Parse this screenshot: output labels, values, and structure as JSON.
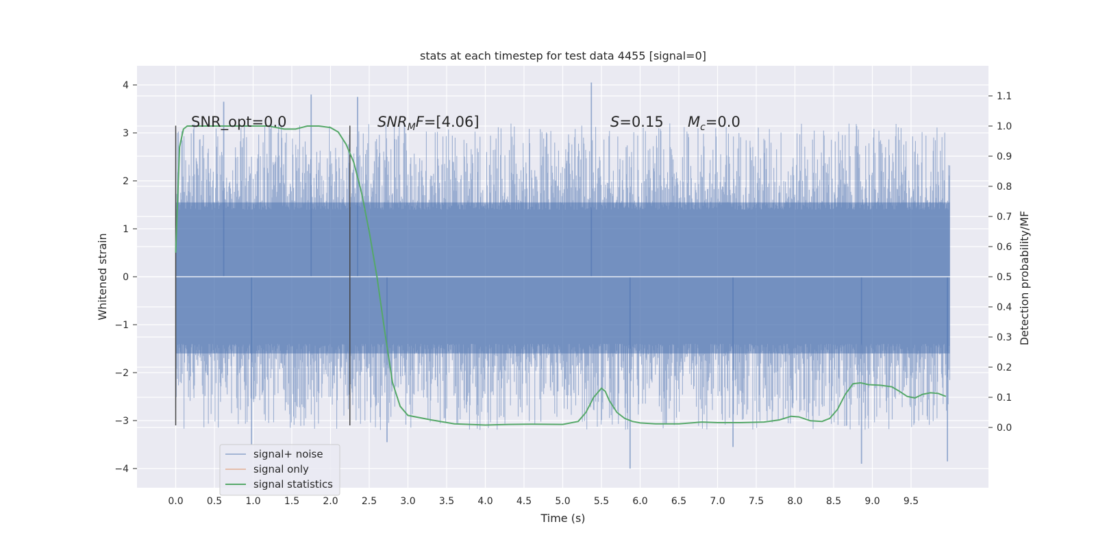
{
  "chart_data": {
    "type": "line",
    "title": "stats at each timestep for test data 4455 [signal=0]",
    "xlabel": "Time (s)",
    "ylabel": "Whitened strain",
    "ylabel_right": "Detection probability/MF",
    "xlim": [
      -0.5,
      10.5
    ],
    "ylim": [
      -4.4,
      4.4
    ],
    "ylim_right": [
      -0.2,
      1.2
    ],
    "x_ticks": [
      0.0,
      0.5,
      1.0,
      1.5,
      2.0,
      2.5,
      3.0,
      3.5,
      4.0,
      4.5,
      5.0,
      5.5,
      6.0,
      6.5,
      7.0,
      7.5,
      8.0,
      8.5,
      9.0,
      9.5
    ],
    "x_tick_labels": [
      "0.0",
      "0.5",
      "1.0",
      "1.5",
      "2.0",
      "2.5",
      "3.0",
      "3.5",
      "4.0",
      "4.5",
      "5.0",
      "5.5",
      "6.0",
      "6.5",
      "7.0",
      "7.5",
      "8.0",
      "8.5",
      "9.0",
      "9.5"
    ],
    "y_ticks": [
      4,
      3,
      2,
      1,
      0,
      -1,
      -2,
      -3,
      -4
    ],
    "y_tick_labels": [
      "4",
      "3",
      "2",
      "1",
      "0",
      "−1",
      "−2",
      "−3",
      "−4"
    ],
    "y_right_ticks": [
      1.1,
      1.0,
      0.9,
      0.8,
      0.7,
      0.6,
      0.5,
      0.4,
      0.3,
      0.2,
      0.1,
      0.0
    ],
    "y_right_tick_labels": [
      "1.1",
      "1.0",
      "0.9",
      "0.8",
      "0.7",
      "0.6",
      "0.5",
      "0.4",
      "0.3",
      "0.2",
      "0.1",
      "0.0"
    ],
    "annotations": {
      "snr_opt": "SNR_opt=0.0",
      "snr_mf_prefix": "SNR",
      "snr_mf_sub": "M",
      "snr_mf_suffix": "F",
      "snr_mf_value": "=[4.06]",
      "s_label": "S",
      "s_value": "=0.15",
      "mc_label": "M",
      "mc_sub": "c",
      "mc_value": "=0.0"
    },
    "vertical_markers": [
      0.0,
      2.25
    ],
    "vertical_marker_range": [
      -3.1,
      3.15
    ],
    "noise_envelope": {
      "x_range": [
        0.0,
        10.0
      ],
      "body_range": [
        -1.6,
        1.55
      ],
      "peak_high": 4.05,
      "peak_low": -4.0
    },
    "series": [
      {
        "name": "signal+ noise",
        "color": "#4c72b0",
        "opacity": 0.5,
        "kind": "noise"
      },
      {
        "name": "signal only",
        "color": "#dd8452",
        "kind": "empty",
        "x": [],
        "y": []
      },
      {
        "name": "signal statistics",
        "color": "#55a868",
        "axis": "right",
        "x": [
          0.0,
          0.05,
          0.1,
          0.15,
          0.2,
          0.3,
          0.5,
          0.8,
          1.0,
          1.2,
          1.4,
          1.55,
          1.7,
          1.85,
          2.0,
          2.1,
          2.2,
          2.3,
          2.4,
          2.5,
          2.6,
          2.7,
          2.8,
          2.9,
          3.0,
          3.3,
          3.6,
          4.0,
          4.3,
          4.6,
          5.0,
          5.2,
          5.3,
          5.4,
          5.5,
          5.55,
          5.6,
          5.7,
          5.8,
          5.9,
          6.0,
          6.2,
          6.5,
          6.8,
          7.0,
          7.3,
          7.6,
          7.8,
          7.95,
          8.05,
          8.2,
          8.35,
          8.45,
          8.55,
          8.65,
          8.75,
          8.85,
          8.95,
          9.1,
          9.25,
          9.35,
          9.45,
          9.55,
          9.65,
          9.75,
          9.85,
          9.95
        ],
        "y": [
          0.58,
          0.93,
          0.99,
          1.0,
          1.0,
          1.0,
          1.0,
          1.0,
          1.0,
          1.0,
          0.99,
          0.99,
          1.0,
          1.0,
          0.995,
          0.98,
          0.94,
          0.88,
          0.78,
          0.65,
          0.5,
          0.32,
          0.15,
          0.07,
          0.04,
          0.025,
          0.012,
          0.008,
          0.01,
          0.011,
          0.01,
          0.02,
          0.05,
          0.1,
          0.13,
          0.12,
          0.09,
          0.05,
          0.03,
          0.02,
          0.015,
          0.012,
          0.012,
          0.018,
          0.016,
          0.016,
          0.018,
          0.025,
          0.037,
          0.035,
          0.022,
          0.02,
          0.03,
          0.06,
          0.11,
          0.145,
          0.148,
          0.142,
          0.14,
          0.135,
          0.12,
          0.103,
          0.098,
          0.11,
          0.115,
          0.113,
          0.103
        ]
      }
    ],
    "legend_location": "lower-left"
  }
}
